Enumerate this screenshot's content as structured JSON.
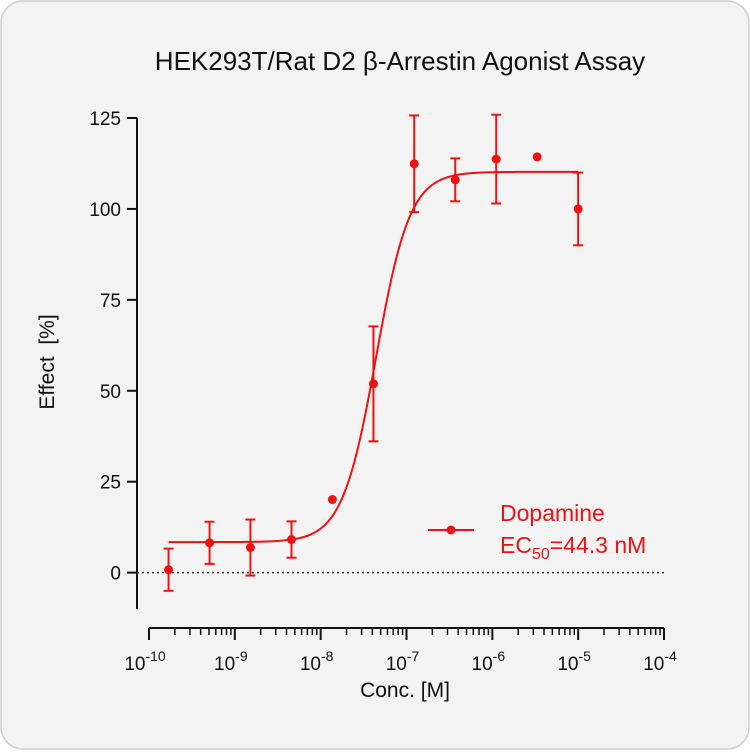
{
  "chart_data": {
    "type": "dose_response",
    "title": "HEK293T/Rat D2 β-Arrestin Agonist Assay",
    "x_label": "Conc. [M]",
    "y_label": "Effect  [%]",
    "log_x": true,
    "zero_line": true,
    "color": "#ee1111",
    "series": [
      {
        "name": "Dopamine",
        "color": "#ee1111",
        "x": [
          1.69e-10,
          5.08e-10,
          1.52e-09,
          4.57e-09,
          1.37e-08,
          4.12e-08,
          1.23e-07,
          3.7e-07,
          1.11e-06,
          3.33e-06,
          1e-05
        ],
        "values": [
          0.8,
          8.2,
          6.9,
          9.1,
          20.1,
          51.9,
          112.4,
          108,
          113.7,
          114.3,
          100
        ],
        "errors": [
          5.8,
          5.8,
          7.7,
          5,
          null,
          15.8,
          13.3,
          5.9,
          12.2,
          null,
          10
        ]
      }
    ],
    "fit": {
      "bottom": 8.4,
      "top": 110.2,
      "ec50": 4.43e-08,
      "hill": 2.2
    },
    "annotation": {
      "prefix": "EC",
      "sub": "50",
      "text": "=44.3 nM"
    },
    "xlim": [
      1e-10,
      0.0001
    ],
    "xticks": [
      {
        "value": 1e-10,
        "label": "10",
        "exp": "-10"
      },
      {
        "value": 1e-09,
        "label": "10",
        "exp": "-9"
      },
      {
        "value": 1e-08,
        "label": "10",
        "exp": "-8"
      },
      {
        "value": 1e-07,
        "label": "10",
        "exp": "-7"
      },
      {
        "value": 1e-06,
        "label": "10",
        "exp": "-6"
      },
      {
        "value": 1e-05,
        "label": "10",
        "exp": "-5"
      },
      {
        "value": 0.0001,
        "label": "10",
        "exp": "-4"
      }
    ],
    "ylim": [
      -10,
      125
    ],
    "yticks": [
      0,
      25,
      50,
      75,
      100,
      125
    ]
  }
}
